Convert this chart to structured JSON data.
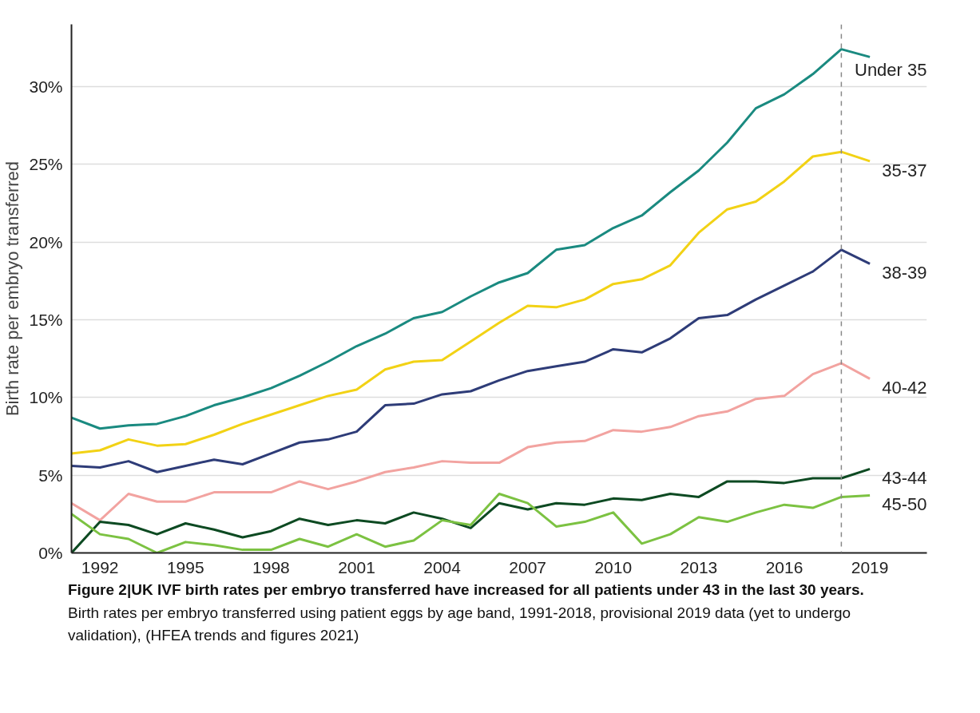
{
  "chart_data": {
    "type": "line",
    "title": "Figure 2|UK IVF birth rates per embryo transferred have increased for all patients under 43 in the last 30 years.",
    "annotations": [
      "Birth rates per embryo transferred using patient eggs by age band, 1991-2018, provisional 2019 data (yet to undergo validation), (HFEA trends and figures 2021)"
    ],
    "ylabel": "Birth rate per embryo transferred",
    "x": [
      1991,
      1992,
      1993,
      1994,
      1995,
      1996,
      1997,
      1998,
      1999,
      2000,
      2001,
      2002,
      2003,
      2004,
      2005,
      2006,
      2007,
      2008,
      2009,
      2010,
      2011,
      2012,
      2013,
      2014,
      2015,
      2016,
      2017,
      2018,
      2019
    ],
    "series": [
      {
        "name": "Under 35",
        "color": "#1a8a80",
        "values": [
          8.7,
          8.0,
          8.2,
          8.3,
          8.8,
          9.5,
          10.0,
          10.6,
          11.4,
          12.3,
          13.3,
          14.1,
          15.1,
          15.5,
          16.5,
          17.4,
          18.0,
          19.5,
          19.8,
          20.9,
          21.7,
          23.2,
          24.6,
          26.4,
          28.6,
          29.5,
          30.8,
          32.4,
          31.9
        ]
      },
      {
        "name": "35-37",
        "color": "#f2d215",
        "values": [
          6.4,
          6.6,
          7.3,
          6.9,
          7.0,
          7.6,
          8.3,
          8.9,
          9.5,
          10.1,
          10.5,
          11.8,
          12.3,
          12.4,
          13.6,
          14.8,
          15.9,
          15.8,
          16.3,
          17.3,
          17.6,
          18.5,
          20.6,
          22.1,
          22.6,
          23.9,
          25.5,
          25.8,
          25.2
        ]
      },
      {
        "name": "38-39",
        "color": "#2e3c78",
        "values": [
          5.6,
          5.5,
          5.9,
          5.2,
          5.6,
          6.0,
          5.7,
          6.4,
          7.1,
          7.3,
          7.8,
          9.5,
          9.6,
          10.2,
          10.4,
          11.1,
          11.7,
          12.0,
          12.3,
          13.1,
          12.9,
          13.8,
          15.1,
          15.3,
          16.3,
          17.2,
          18.1,
          19.5,
          18.6
        ]
      },
      {
        "name": "40-42",
        "color": "#f2a3a0",
        "values": [
          3.2,
          2.1,
          3.8,
          3.3,
          3.3,
          3.9,
          3.9,
          3.9,
          4.6,
          4.1,
          4.6,
          5.2,
          5.5,
          5.9,
          5.8,
          5.8,
          6.8,
          7.1,
          7.2,
          7.9,
          7.8,
          8.1,
          8.8,
          9.1,
          9.9,
          10.1,
          11.5,
          12.2,
          11.2
        ]
      },
      {
        "name": "43-44",
        "color": "#0d4a22",
        "values": [
          0,
          2.0,
          1.8,
          1.2,
          1.9,
          1.5,
          1.0,
          1.4,
          2.2,
          1.8,
          2.1,
          1.9,
          2.6,
          2.2,
          1.6,
          3.2,
          2.8,
          3.2,
          3.1,
          3.5,
          3.4,
          3.8,
          3.6,
          4.6,
          4.6,
          4.5,
          4.8,
          4.8,
          5.4
        ]
      },
      {
        "name": "45-50",
        "color": "#7cc242",
        "values": [
          2.5,
          1.2,
          0.9,
          0,
          0.7,
          0.5,
          0.2,
          0.2,
          0.9,
          0.4,
          1.2,
          0.4,
          0.8,
          2.1,
          1.8,
          3.8,
          3.2,
          1.7,
          2.0,
          2.6,
          0.6,
          1.2,
          2.3,
          2.0,
          2.6,
          3.1,
          2.9,
          3.6,
          3.7
        ]
      }
    ],
    "xlim": [
      1991,
      2021
    ],
    "xticks": [
      1992,
      1995,
      1998,
      2001,
      2004,
      2007,
      2010,
      2013,
      2016,
      2019
    ],
    "ylim": [
      0,
      34
    ],
    "yticks": [
      {
        "value": 0,
        "label": "0%"
      },
      {
        "value": 5,
        "label": "5%"
      },
      {
        "value": 10,
        "label": "10%"
      },
      {
        "value": 15,
        "label": "15%"
      },
      {
        "value": 20,
        "label": "20%"
      },
      {
        "value": 25,
        "label": "25%"
      },
      {
        "value": 30,
        "label": "30%"
      }
    ],
    "ref_lines": [
      {
        "axis": "x",
        "value": 2018,
        "color": "#888888",
        "line_style": "dashed"
      }
    ],
    "grid": "y",
    "line_style": "solid"
  }
}
